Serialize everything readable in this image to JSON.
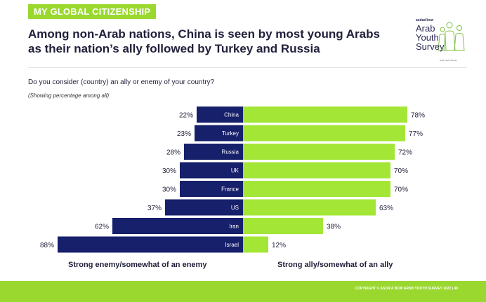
{
  "section_tag": "MY GLOBAL CITIZENSHIP",
  "headline": {
    "line1": "Among non-Arab nations, China is seen by most young Arabs",
    "line2": "as their nation’s ally followed by Turkey and Russia"
  },
  "logo": {
    "brand": "asdaa'bcw",
    "line1": "Arab",
    "line2": "Youth",
    "line3": "Survey",
    "tagline": "Arab Youth Survey"
  },
  "question": "Do you consider (country) an ally or enemy of your country?",
  "note": "(Showing percentage among all)",
  "colors": {
    "enemy": "#17206b",
    "ally": "#a3e635",
    "accent": "#9ad82f",
    "text": "#1f1f3a"
  },
  "chart_data": {
    "type": "bar",
    "orientation": "horizontal-diverging",
    "categories": [
      "China",
      "Turkey",
      "Russia",
      "UK",
      "France",
      "US",
      "Iran",
      "Israel"
    ],
    "series": [
      {
        "name": "Strong enemy/somewhat of an enemy",
        "values": [
          22,
          23,
          28,
          30,
          30,
          37,
          62,
          88
        ],
        "color": "#17206b"
      },
      {
        "name": "Strong ally/somewhat of an ally",
        "values": [
          78,
          77,
          72,
          70,
          70,
          63,
          38,
          12
        ],
        "color": "#a3e635"
      }
    ],
    "value_suffix": "%",
    "xlim": [
      0,
      100
    ]
  },
  "axis_captions": {
    "left": "Strong enemy/somewhat of an enemy",
    "right": "Strong ally/somewhat of an ally"
  },
  "footer": "COPYRIGHT © ASDA'A BCW ARAB YOUTH SURVEY 2022 | 40"
}
